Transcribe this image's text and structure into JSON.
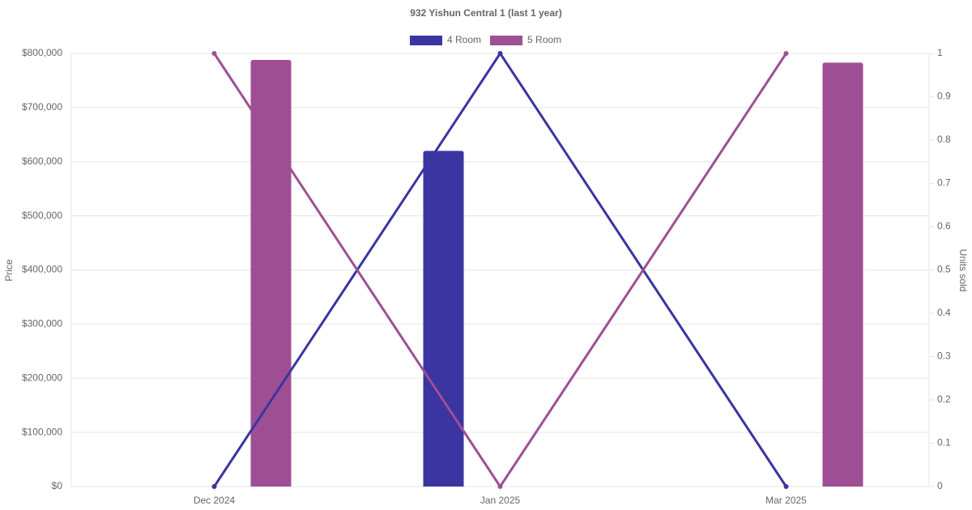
{
  "chart_data": {
    "type": "bar-line",
    "title": "932 Yishun Central 1 (last 1 year)",
    "y_label": "Price",
    "y2_label": "Units sold",
    "categories": [
      "Dec 2024",
      "Jan 2025",
      "Mar 2025"
    ],
    "series": [
      {
        "name": "4 Room",
        "color": "#3a35a0",
        "values": [
          null,
          620000,
          null
        ],
        "y2_values": [
          0,
          1,
          0
        ]
      },
      {
        "name": "5 Room",
        "color": "#9e4f94",
        "values": [
          788000,
          null,
          783000
        ],
        "y2_values": [
          1,
          0,
          1
        ]
      }
    ],
    "ylim": [
      0,
      800000
    ],
    "yticks": [
      {
        "value": 0,
        "label": "$0"
      },
      {
        "value": 100000,
        "label": "$100,000"
      },
      {
        "value": 200000,
        "label": "$200,000"
      },
      {
        "value": 300000,
        "label": "$300,000"
      },
      {
        "value": 400000,
        "label": "$400,000"
      },
      {
        "value": 500000,
        "label": "$500,000"
      },
      {
        "value": 600000,
        "label": "$600,000"
      },
      {
        "value": 700000,
        "label": "$700,000"
      },
      {
        "value": 800000,
        "label": "$800,000"
      }
    ],
    "y2lim": [
      0,
      1
    ],
    "y2ticks": [
      0,
      0.1,
      0.2,
      0.3,
      0.4,
      0.5,
      0.6,
      0.7,
      0.8,
      0.9,
      1
    ],
    "grid": true
  }
}
